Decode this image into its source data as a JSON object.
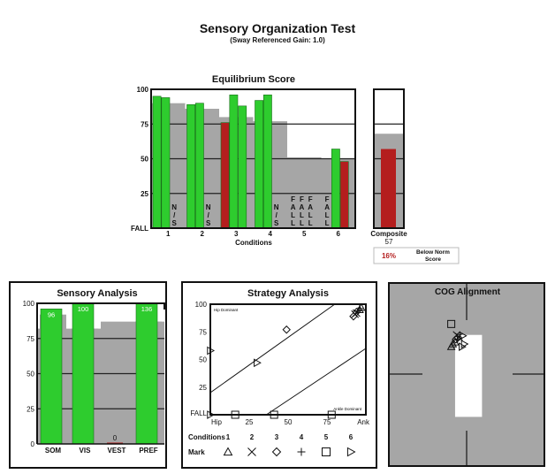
{
  "header": {
    "title": "Sensory Organization Test",
    "subtitle": "(Sway Referenced Gain: 1.0)"
  },
  "colors": {
    "pass": "#2ecc2e",
    "fail": "#b41e1e",
    "norm": "#a6a6a6",
    "frame": "#111111"
  },
  "chart_data": [
    {
      "id": "equilibrium",
      "type": "bar",
      "title": "Equilibrium Score",
      "xlabel": "Conditions",
      "ylabel": "",
      "ylim": [
        0,
        100
      ],
      "yticks": [
        "FALL",
        "25",
        "50",
        "75",
        "100"
      ],
      "ytick_values": [
        0,
        25,
        50,
        75,
        100
      ],
      "grid": true,
      "categories": [
        "1",
        "2",
        "3",
        "4",
        "5",
        "6"
      ],
      "norms": [
        90,
        86,
        80,
        77,
        51,
        50
      ],
      "trials": [
        [
          {
            "value": 95,
            "status": "pass"
          },
          {
            "value": 94,
            "status": "pass"
          },
          {
            "value": null,
            "status": "N/S"
          }
        ],
        [
          {
            "value": 89,
            "status": "pass"
          },
          {
            "value": 90,
            "status": "pass"
          },
          {
            "value": null,
            "status": "N/S"
          }
        ],
        [
          {
            "value": 76,
            "status": "fail"
          },
          {
            "value": 96,
            "status": "pass"
          },
          {
            "value": 88,
            "status": "pass"
          }
        ],
        [
          {
            "value": 92,
            "status": "pass"
          },
          {
            "value": 96,
            "status": "pass"
          },
          {
            "value": null,
            "status": "N/S"
          }
        ],
        [
          {
            "value": 0,
            "status": "FALL"
          },
          {
            "value": 0,
            "status": "FALL"
          },
          {
            "value": 0,
            "status": "FALL"
          }
        ],
        [
          {
            "value": 0,
            "status": "FALL"
          },
          {
            "value": 57,
            "status": "pass"
          },
          {
            "value": 48,
            "status": "fail"
          }
        ]
      ],
      "composite": {
        "label": "Composite",
        "value": 57,
        "norm": 68,
        "status": "fail"
      },
      "below_norm": {
        "percent": "16%",
        "label": "Below Norm Score"
      }
    },
    {
      "id": "sensory",
      "type": "bar",
      "title": "Sensory Analysis",
      "ylim": [
        0,
        100
      ],
      "yticks": [
        "0",
        "25",
        "50",
        "75",
        "100"
      ],
      "ytick_values": [
        0,
        25,
        50,
        75,
        100
      ],
      "categories": [
        "SOM",
        "VIS",
        "VEST",
        "PREF"
      ],
      "values": [
        96,
        100,
        0,
        136
      ],
      "value_labels": [
        "96",
        "100",
        "0",
        "136"
      ],
      "norms": [
        92,
        82,
        54,
        87
      ],
      "norm_shoulders": [
        82,
        82,
        87,
        87
      ],
      "status": [
        "pass",
        "pass",
        "fail",
        "pass"
      ]
    },
    {
      "id": "strategy",
      "type": "scatter",
      "title": "Strategy Analysis",
      "xlim": [
        0,
        100
      ],
      "ylim": [
        0,
        100
      ],
      "xticks": [
        "Hip",
        "25",
        "50",
        "75",
        "Ank"
      ],
      "xtick_values": [
        0,
        25,
        50,
        75,
        100
      ],
      "yticks": [
        "FALL",
        "25",
        "50",
        "75",
        "100"
      ],
      "ytick_values": [
        0,
        25,
        50,
        75,
        100
      ],
      "annotations": [
        "Hip Dominant",
        "Ankle Dominant"
      ],
      "legend": {
        "conditions_label": "Conditions",
        "mark_label": "Mark",
        "conditions": [
          "1",
          "2",
          "3",
          "4",
          "5",
          "6"
        ],
        "marks": [
          "triangle",
          "x",
          "diamond",
          "plus",
          "square",
          "right-triangle"
        ]
      },
      "points": [
        {
          "condition": 1,
          "mark": "triangle",
          "x": 97,
          "y": 97
        },
        {
          "condition": 1,
          "mark": "triangle",
          "x": 96,
          "y": 95
        },
        {
          "condition": 2,
          "mark": "x",
          "x": 93,
          "y": 91
        },
        {
          "condition": 2,
          "mark": "x",
          "x": 94,
          "y": 92
        },
        {
          "condition": 3,
          "mark": "diamond",
          "x": 49,
          "y": 77
        },
        {
          "condition": 3,
          "mark": "diamond",
          "x": 92,
          "y": 89
        },
        {
          "condition": 3,
          "mark": "diamond",
          "x": 94,
          "y": 93
        },
        {
          "condition": 4,
          "mark": "plus",
          "x": 95,
          "y": 94
        },
        {
          "condition": 4,
          "mark": "plus",
          "x": 96,
          "y": 96
        },
        {
          "condition": 5,
          "mark": "square",
          "x": 16,
          "y": 0
        },
        {
          "condition": 5,
          "mark": "square",
          "x": 41,
          "y": 0
        },
        {
          "condition": 5,
          "mark": "square",
          "x": 78,
          "y": 0
        },
        {
          "condition": 6,
          "mark": "right-triangle",
          "x": 0,
          "y": 58
        },
        {
          "condition": 6,
          "mark": "right-triangle",
          "x": 30,
          "y": 47
        },
        {
          "condition": 6,
          "mark": "right-triangle",
          "x": 0,
          "y": 0
        }
      ],
      "reference_lines": [
        {
          "x1": 0,
          "y1": 20,
          "x2": 80,
          "y2": 100
        },
        {
          "x1": 36,
          "y1": 0,
          "x2": 100,
          "y2": 60
        }
      ]
    },
    {
      "id": "cog",
      "type": "scatter",
      "title": "COG Alignment",
      "xlim": [
        -100,
        100
      ],
      "ylim": [
        -100,
        100
      ],
      "limits_box": {
        "x": [
          -15,
          20
        ],
        "y": [
          -47,
          43
        ]
      },
      "points": [
        {
          "mark": "square",
          "x": -20,
          "y": 55
        },
        {
          "mark": "x",
          "x": -13,
          "y": 43
        },
        {
          "mark": "x",
          "x": -10,
          "y": 41
        },
        {
          "mark": "diamond",
          "x": -14,
          "y": 38
        },
        {
          "mark": "diamond",
          "x": -11,
          "y": 40
        },
        {
          "mark": "plus",
          "x": -12,
          "y": 38
        },
        {
          "mark": "triangle",
          "x": -18,
          "y": 33
        },
        {
          "mark": "triangle",
          "x": -20,
          "y": 30
        },
        {
          "mark": "triangle",
          "x": -15,
          "y": 35
        },
        {
          "mark": "right-triangle",
          "x": -5,
          "y": 42
        },
        {
          "mark": "right-triangle",
          "x": -3,
          "y": 33
        },
        {
          "mark": "right-triangle",
          "x": -6,
          "y": 30
        }
      ]
    }
  ]
}
